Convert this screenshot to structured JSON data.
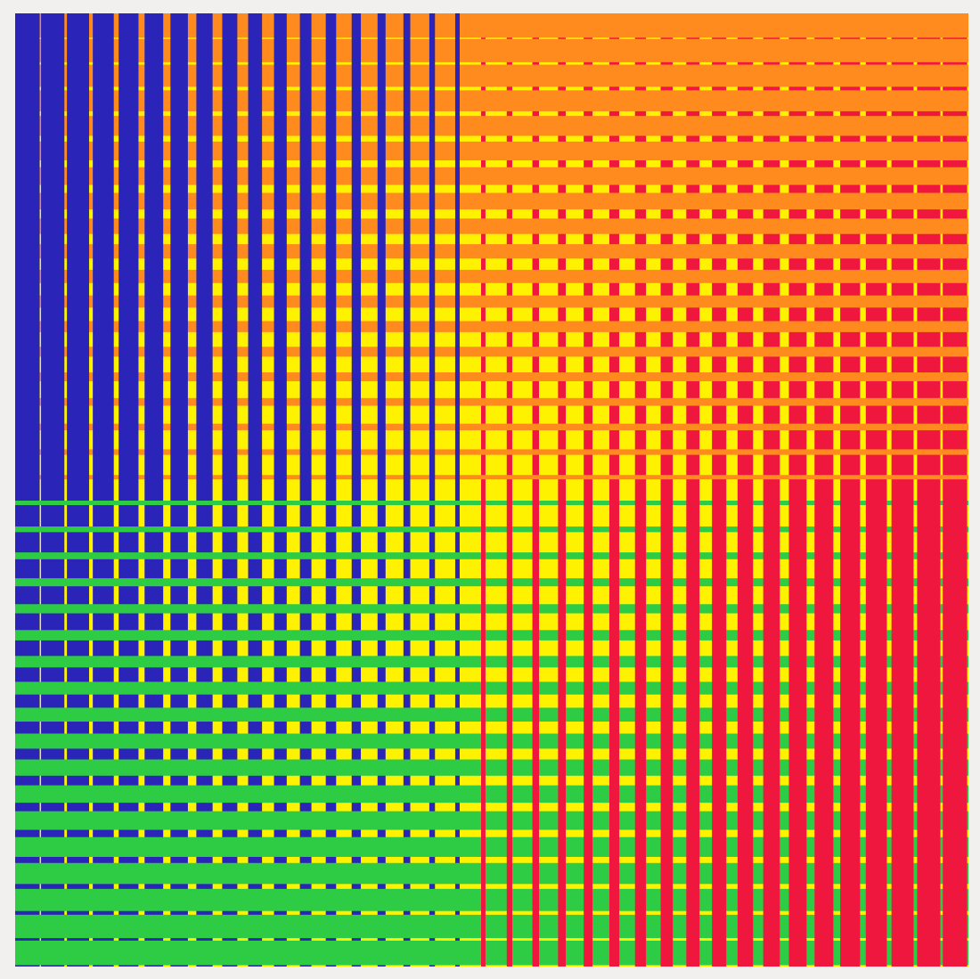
{
  "artwork": {
    "colors": {
      "paper": "#f1f0ee",
      "background": "#fff200",
      "blue": "#2a25b8",
      "orange": "#ff8a1e",
      "red": "#f0173f",
      "green": "#2ecc45"
    }
  }
}
